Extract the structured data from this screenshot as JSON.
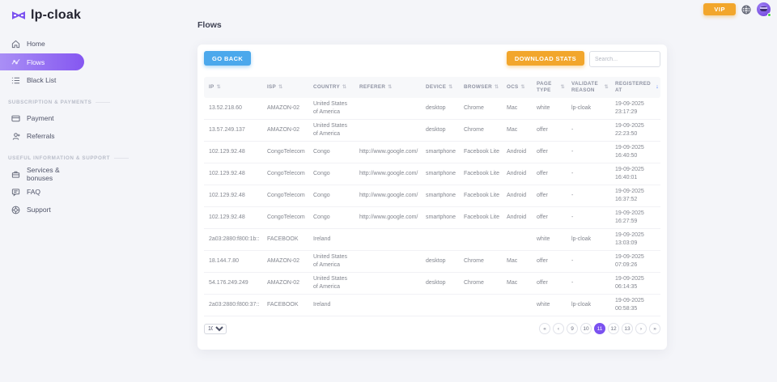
{
  "colors": {
    "brand_purple": "#7b52f0",
    "accent_blue": "#4ba8ec",
    "accent_orange": "#f2a62c",
    "online_green": "#3dd13d",
    "active_sort_blue": "#4d7cfe"
  },
  "brand": {
    "name": "lp-cloak",
    "logo_icon": "mask-icon"
  },
  "topbar": {
    "vip_label": "VIP",
    "globe_icon": "globe-icon",
    "avatar_status": "online"
  },
  "sidebar": {
    "sections": [
      {
        "label": "",
        "items": [
          {
            "label": "Home",
            "icon": "home-icon",
            "active": false
          },
          {
            "label": "Flows",
            "icon": "flows-icon",
            "active": true
          },
          {
            "label": "Black List",
            "icon": "blacklist-icon",
            "active": false
          }
        ]
      },
      {
        "label": "SUBSCRIPTION & PAYMENTS",
        "items": [
          {
            "label": "Payment",
            "icon": "payment-icon",
            "active": false
          },
          {
            "label": "Referrals",
            "icon": "referrals-icon",
            "active": false
          }
        ]
      },
      {
        "label": "USEFUL INFORMATION & SUPPORT",
        "items": [
          {
            "label": "Services & bonuses",
            "icon": "services-icon",
            "active": false
          },
          {
            "label": "FAQ",
            "icon": "faq-icon",
            "active": false
          },
          {
            "label": "Support",
            "icon": "support-icon",
            "active": false
          }
        ]
      }
    ]
  },
  "page": {
    "title": "Flows"
  },
  "toolbar": {
    "go_back_label": "GO BACK",
    "download_stats_label": "DOWNLOAD STATS",
    "search_placeholder": "Search..."
  },
  "table": {
    "columns": [
      "IP",
      "ISP",
      "COUNTRY",
      "REFERER",
      "DEVICE",
      "BROWSER",
      "OCS",
      "PAGE TYPE",
      "VALIDATE REASON",
      "REGISTERED AT"
    ],
    "sorted_column_index": 9,
    "sort_direction": "desc",
    "rows": [
      [
        "13.52.218.60",
        "AMAZON-02",
        "United States of America",
        "",
        "desktop",
        "Chrome",
        "Mac",
        "white",
        "lp-cloak",
        "19-09-2025 23:17:29"
      ],
      [
        "13.57.249.137",
        "AMAZON-02",
        "United States of America",
        "",
        "desktop",
        "Chrome",
        "Mac",
        "offer",
        "-",
        "19-09-2025 22:23:50"
      ],
      [
        "102.129.92.48",
        "CongoTelecom",
        "Congo",
        "http://www.google.com/",
        "smartphone",
        "Facebook Lite",
        "Android",
        "offer",
        "-",
        "19-09-2025 16:40:50"
      ],
      [
        "102.129.92.48",
        "CongoTelecom",
        "Congo",
        "http://www.google.com/",
        "smartphone",
        "Facebook Lite",
        "Android",
        "offer",
        "-",
        "19-09-2025 16:40:01"
      ],
      [
        "102.129.92.48",
        "CongoTelecom",
        "Congo",
        "http://www.google.com/",
        "smartphone",
        "Facebook Lite",
        "Android",
        "offer",
        "-",
        "19-09-2025 16:37:52"
      ],
      [
        "102.129.92.48",
        "CongoTelecom",
        "Congo",
        "http://www.google.com/",
        "smartphone",
        "Facebook Lite",
        "Android",
        "offer",
        "-",
        "19-09-2025 16:27:59"
      ],
      [
        "2a03:2880:f800:1b::",
        "FACEBOOK",
        "Ireland",
        "",
        "",
        "",
        "",
        "white",
        "lp-cloak",
        "19-09-2025 13:03:09"
      ],
      [
        "18.144.7.80",
        "AMAZON-02",
        "United States of America",
        "",
        "desktop",
        "Chrome",
        "Mac",
        "offer",
        "-",
        "19-09-2025 07:09:26"
      ],
      [
        "54.176.249.249",
        "AMAZON-02",
        "United States of America",
        "",
        "desktop",
        "Chrome",
        "Mac",
        "offer",
        "-",
        "19-09-2025 06:14:35"
      ],
      [
        "2a03:2880:f800:37::",
        "FACEBOOK",
        "Ireland",
        "",
        "",
        "",
        "",
        "white",
        "lp-cloak",
        "19-09-2025 00:58:35"
      ]
    ]
  },
  "footer": {
    "page_size": "10",
    "pagination": [
      {
        "label": "«",
        "name": "first-page-button",
        "active": false
      },
      {
        "label": "‹",
        "name": "prev-page-button",
        "active": false
      },
      {
        "label": "9",
        "name": "page-button-9",
        "active": false
      },
      {
        "label": "10",
        "name": "page-button-10",
        "active": false
      },
      {
        "label": "11",
        "name": "page-button-11",
        "active": true
      },
      {
        "label": "12",
        "name": "page-button-12",
        "active": false
      },
      {
        "label": "13",
        "name": "page-button-13",
        "active": false
      },
      {
        "label": "›",
        "name": "next-page-button",
        "active": false
      },
      {
        "label": "»",
        "name": "last-page-button",
        "active": false
      }
    ]
  }
}
